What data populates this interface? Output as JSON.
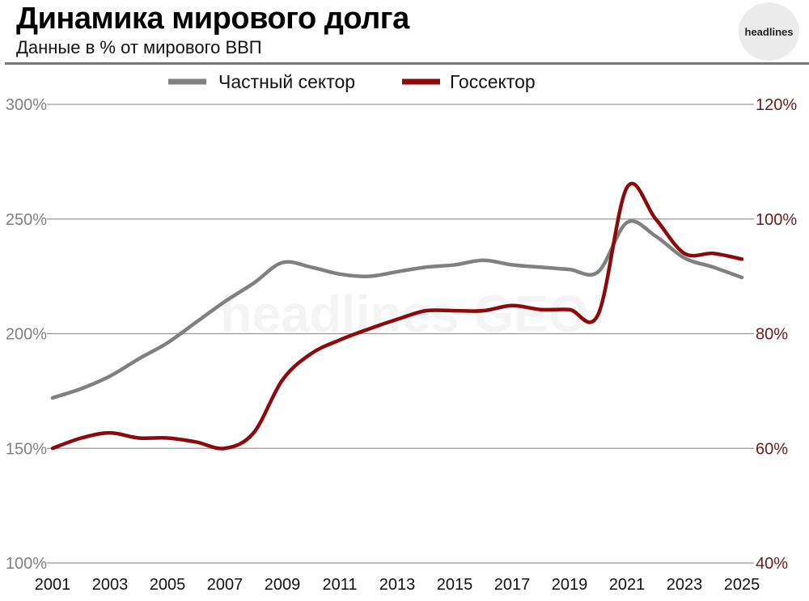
{
  "header": {
    "title": "Динамика мирового долга",
    "subtitle": "Данные в % от мирового ВВП",
    "logo": "headlines"
  },
  "watermark": "headlines GEO",
  "chart_data": {
    "type": "line",
    "title": "Динамика мирового долга",
    "subtitle": "Данные в % от мирового ВВП",
    "x": [
      2001,
      2002,
      2003,
      2004,
      2005,
      2006,
      2007,
      2008,
      2009,
      2010,
      2011,
      2012,
      2013,
      2014,
      2015,
      2016,
      2017,
      2018,
      2019,
      2020,
      2021,
      2022,
      2023,
      2024,
      2025
    ],
    "x_ticks": [
      "2001",
      "2003",
      "2005",
      "2007",
      "2009",
      "2011",
      "2013",
      "2015",
      "2017",
      "2019",
      "2021",
      "2023",
      "2025"
    ],
    "y_left": {
      "range": [
        100,
        300
      ],
      "ticks": [
        "100%",
        "150%",
        "200%",
        "250%",
        "300%"
      ]
    },
    "y_right": {
      "range": [
        40,
        120
      ],
      "ticks": [
        "40%",
        "60%",
        "80%",
        "100%",
        "120%"
      ]
    },
    "grid": true,
    "legend_position": "top-center",
    "series": [
      {
        "name": "Частный сектор",
        "axis": "left",
        "color": "#808080",
        "values": [
          172,
          176,
          181.5,
          189,
          196,
          205,
          214,
          222,
          231,
          229,
          226,
          225,
          227,
          229,
          230,
          232,
          230,
          229,
          228,
          227,
          248.5,
          242.5,
          233,
          229,
          224.5
        ]
      },
      {
        "name": "Госсектор",
        "axis": "right",
        "color": "#8b0a0a",
        "values": [
          60,
          61.8,
          62.7,
          61.8,
          61.8,
          61.1,
          60,
          62.7,
          71.9,
          76.5,
          78.9,
          80.8,
          82.5,
          84,
          84,
          84,
          84.9,
          84.2,
          84.2,
          83.4,
          105.5,
          100,
          94,
          94,
          93
        ]
      }
    ],
    "colors": {
      "left_axis": "#808080",
      "right_axis": "#6b1a1a",
      "grid": "#999999"
    }
  }
}
